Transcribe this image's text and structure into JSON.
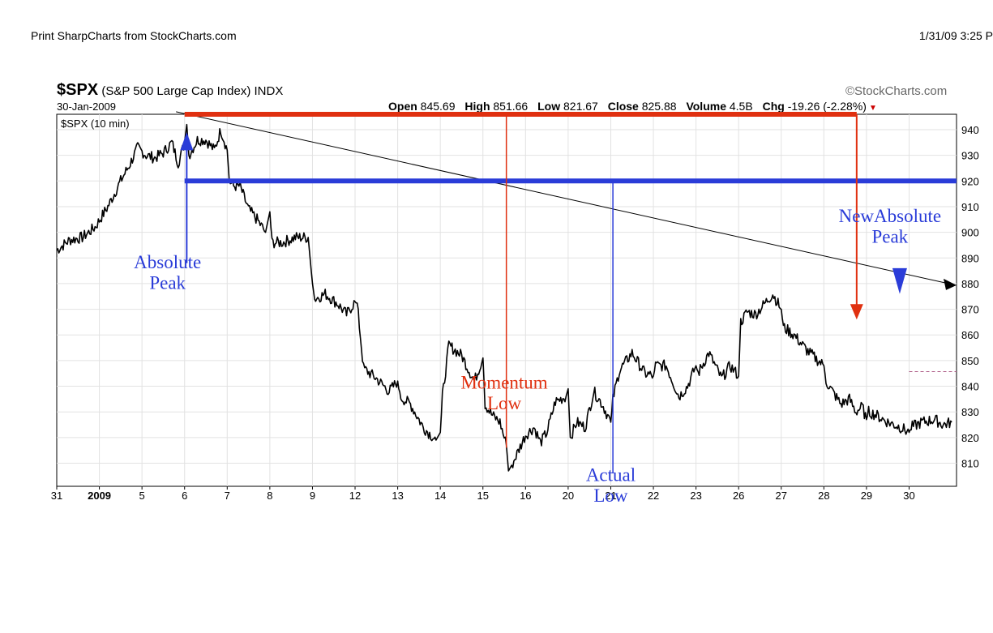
{
  "header": {
    "print_title": "Print SharpCharts from StockCharts.com",
    "print_date": "1/31/09 3:25 P"
  },
  "chart_info": {
    "symbol": "$SPX",
    "description": "(S&P 500 Large Cap Index)",
    "exchange": "INDX",
    "date": "30-Jan-2009",
    "credit": "©StockCharts.com",
    "panel_label": "$SPX (10 min)",
    "open_label": "Open",
    "open": "845.69",
    "high_label": "High",
    "high": "851.66",
    "low_label": "Low",
    "low": "821.67",
    "close_label": "Close",
    "close": "825.88",
    "volume_label": "Volume",
    "volume": "4.5B",
    "chg_label": "Chg",
    "chg": "-19.26 (-2.28%)"
  },
  "colors": {
    "price": "#000000",
    "red": "#e03010",
    "blue": "#2a3cd8",
    "grid": "#e2e2e2",
    "dashed": "#b0608a"
  },
  "chart_data": {
    "type": "line",
    "title": "$SPX (S&P 500 Large Cap Index) INDX",
    "xlabel": "",
    "ylabel": "",
    "ylim": [
      801,
      946
    ],
    "y_ticks": [
      810,
      820,
      830,
      840,
      850,
      860,
      870,
      880,
      890,
      900,
      910,
      920,
      930,
      940
    ],
    "x_ticks": [
      "31",
      "2009",
      "5",
      "6",
      "7",
      "8",
      "9",
      "12",
      "13",
      "14",
      "15",
      "16",
      "20",
      "21",
      "22",
      "23",
      "26",
      "27",
      "28",
      "29",
      "30"
    ],
    "grid": true,
    "series": [
      {
        "name": "$SPX (10 min)",
        "x": [
          0,
          0.3,
          0.6,
          0.9,
          1.2,
          1.5,
          1.7,
          1.9,
          2.1,
          2.3,
          2.5,
          2.7,
          2.85,
          3.0,
          3.05,
          3.1,
          3.3,
          3.5,
          3.7,
          3.85,
          4.0,
          4.05,
          4.15,
          4.3,
          4.5,
          4.7,
          4.9,
          5.0,
          5.05,
          5.3,
          5.6,
          5.9,
          6.0,
          6.05,
          6.3,
          6.6,
          6.8,
          7.0,
          7.05,
          7.2,
          7.5,
          7.8,
          8.0,
          8.05,
          8.3,
          8.6,
          8.9,
          9.0,
          9.05,
          9.2,
          9.5,
          9.8,
          10.0,
          10.05,
          10.2,
          10.4,
          10.55,
          10.6,
          10.7,
          11.0,
          11.2,
          11.35,
          11.5,
          11.7,
          11.95,
          12.0,
          12.05,
          12.2,
          12.4,
          12.6,
          12.8,
          13.0,
          13.05,
          13.2,
          13.5,
          13.8,
          14.0,
          14.05,
          14.3,
          14.6,
          14.8,
          15.0,
          15.05,
          15.3,
          15.6,
          15.8,
          16.0,
          16.05,
          16.2,
          16.4,
          16.6,
          16.8,
          17.0,
          17.05,
          17.3,
          17.6,
          17.8,
          18.0,
          18.05,
          18.2,
          18.4,
          18.6,
          18.75,
          18.9,
          19.0,
          19.05,
          19.2,
          19.5,
          19.8,
          20.0,
          20.05,
          20.3,
          20.6,
          20.8,
          21.0
        ],
        "values": [
          893,
          897,
          898,
          902,
          910,
          920,
          926,
          933,
          930,
          929,
          931,
          935,
          927,
          935,
          942,
          930,
          936,
          936,
          932,
          940,
          932,
          920,
          918,
          918,
          909,
          905,
          900,
          908,
          896,
          896,
          898,
          898,
          880,
          874,
          876,
          872,
          868,
          873,
          872,
          847,
          843,
          838,
          842,
          836,
          833,
          824,
          819,
          822,
          836,
          856,
          852,
          842,
          851,
          833,
          829,
          826,
          817,
          807,
          810,
          821,
          824,
          818,
          822,
          834,
          836,
          839,
          820,
          826,
          824,
          838,
          833,
          826,
          835,
          846,
          853,
          845,
          844,
          848,
          848,
          836,
          840,
          848,
          845,
          853,
          843,
          848,
          844,
          865,
          869,
          868,
          872,
          876,
          870,
          863,
          860,
          854,
          851,
          848,
          842,
          838,
          833,
          835,
          830,
          832,
          827,
          830,
          829,
          826,
          824,
          822,
          824,
          826,
          827,
          825,
          826
        ]
      }
    ],
    "annotations": [
      {
        "label": "Absolute Peak",
        "line1": "Absolute",
        "line2": "Peak",
        "color": "blue"
      },
      {
        "label": "Momentum Low",
        "line1": "Momentum",
        "line2": "Low",
        "color": "red"
      },
      {
        "label": "Actual Low",
        "line1": "Actual",
        "line2": "Low",
        "color": "blue"
      },
      {
        "label": "NewAbsolute Peak",
        "line1": "NewAbsolute",
        "line2": "Peak",
        "color": "blue"
      }
    ],
    "reference_lines": {
      "red_level": 946,
      "blue_level": 920,
      "dashed_level": 845.69
    }
  }
}
